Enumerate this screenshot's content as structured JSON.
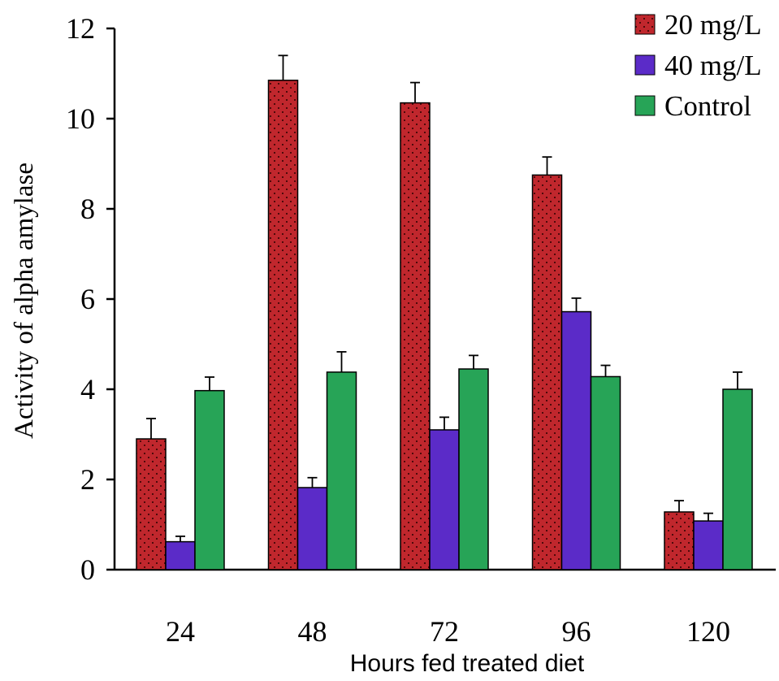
{
  "chart_data": {
    "type": "bar",
    "xlabel": "Hours fed treated diet",
    "ylabel": "Activity of alpha amylase",
    "categories": [
      "24",
      "48",
      "72",
      "96",
      "120"
    ],
    "ylim": [
      0,
      12
    ],
    "yticks": [
      "0",
      "2",
      "4",
      "6",
      "8",
      "10",
      "12"
    ],
    "grid": false,
    "legend_position": "top-right",
    "series": [
      {
        "name": "20 mg/L",
        "color": "#c0272d",
        "pattern": "dots",
        "values": [
          2.9,
          10.85,
          10.35,
          8.75,
          1.28
        ],
        "errors": [
          0.45,
          0.55,
          0.45,
          0.4,
          0.25
        ]
      },
      {
        "name": "40 mg/L",
        "color": "#5b2bc8",
        "pattern": "solid",
        "values": [
          0.62,
          1.82,
          3.1,
          5.72,
          1.08
        ],
        "errors": [
          0.12,
          0.22,
          0.28,
          0.3,
          0.17
        ]
      },
      {
        "name": "Control",
        "color": "#27a457",
        "pattern": "solid",
        "values": [
          3.97,
          4.38,
          4.45,
          4.28,
          4.0
        ],
        "errors": [
          0.3,
          0.45,
          0.3,
          0.25,
          0.38
        ]
      }
    ]
  }
}
